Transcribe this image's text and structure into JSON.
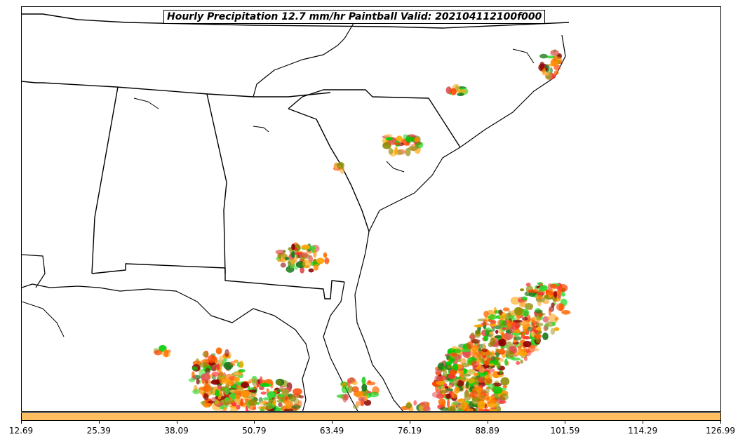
{
  "title": "Hourly Precipitation 12.7 mm/hr Paintball Valid: 202104112100f000",
  "colorbar": {
    "color": "#ffbf60",
    "ticks": [
      "12.69",
      "25.39",
      "38.09",
      "50.79",
      "63.49",
      "76.19",
      "88.89",
      "101.59",
      "114.29",
      "126.99"
    ]
  },
  "paintball_colors": [
    "#ff8c00",
    "#ff6a00",
    "#ffa500",
    "#ff3030",
    "#e05050",
    "#00cc00",
    "#33dd33",
    "#1a7a1a",
    "#8b8b00",
    "#a0a030",
    "#8b0000",
    "#ff4500",
    "#ffb347"
  ]
}
